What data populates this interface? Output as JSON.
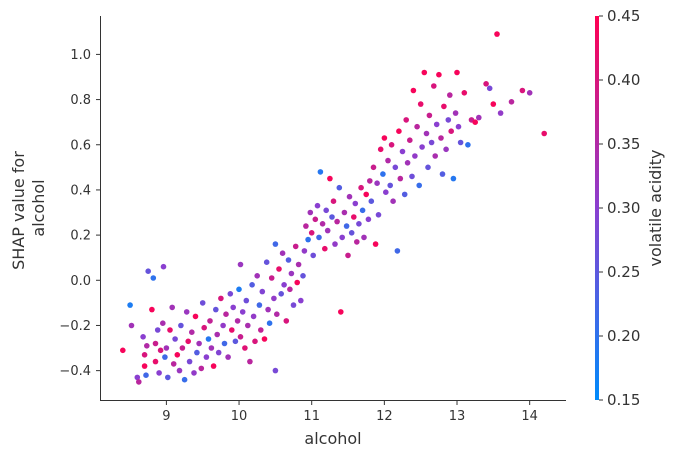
{
  "chart_data": {
    "type": "scatter",
    "title": "",
    "xlabel": "alcohol",
    "ylabel_lines": [
      "SHAP value for",
      "alcohol"
    ],
    "xlim": [
      8.1,
      14.5
    ],
    "ylim": [
      -0.53,
      1.17
    ],
    "xticks": [
      9,
      10,
      11,
      12,
      13,
      14
    ],
    "yticks": [
      -0.4,
      -0.2,
      0.0,
      0.2,
      0.4,
      0.6,
      0.8,
      1.0
    ],
    "xtick_labels": [
      "9",
      "10",
      "11",
      "12",
      "13",
      "14"
    ],
    "ytick_labels": [
      "−0.4",
      "−0.2",
      "0.0",
      "0.2",
      "0.4",
      "0.6",
      "0.8",
      "1.0"
    ],
    "colorbar": {
      "label": "volatile acidity",
      "min": 0.15,
      "max": 0.45,
      "ticks": [
        0.15,
        0.2,
        0.25,
        0.3,
        0.35,
        0.4,
        0.45
      ],
      "tick_labels": [
        "0.15",
        "0.20",
        "0.25",
        "0.30",
        "0.35",
        "0.40",
        "0.45"
      ],
      "color_low": "#008bfb",
      "color_high": "#ff0052"
    },
    "points": [
      [
        8.4,
        -0.31,
        0.44
      ],
      [
        8.5,
        -0.11,
        0.18
      ],
      [
        8.52,
        -0.2,
        0.33
      ],
      [
        8.6,
        -0.43,
        0.3
      ],
      [
        8.62,
        -0.45,
        0.36
      ],
      [
        8.68,
        -0.25,
        0.3
      ],
      [
        8.7,
        -0.33,
        0.4
      ],
      [
        8.7,
        -0.38,
        0.44
      ],
      [
        8.72,
        -0.42,
        0.22
      ],
      [
        8.73,
        -0.29,
        0.35
      ],
      [
        8.75,
        0.04,
        0.26
      ],
      [
        8.8,
        -0.13,
        0.44
      ],
      [
        8.82,
        0.01,
        0.2
      ],
      [
        8.85,
        -0.28,
        0.38
      ],
      [
        8.85,
        -0.36,
        0.42
      ],
      [
        8.88,
        -0.22,
        0.28
      ],
      [
        8.9,
        -0.41,
        0.3
      ],
      [
        8.92,
        -0.31,
        0.4
      ],
      [
        8.95,
        -0.19,
        0.34
      ],
      [
        8.96,
        0.06,
        0.3
      ],
      [
        8.98,
        -0.34,
        0.22
      ],
      [
        9.0,
        -0.3,
        0.33
      ],
      [
        9.02,
        -0.43,
        0.25
      ],
      [
        9.05,
        -0.22,
        0.42
      ],
      [
        9.08,
        -0.12,
        0.33
      ],
      [
        9.1,
        -0.37,
        0.36
      ],
      [
        9.12,
        -0.26,
        0.28
      ],
      [
        9.15,
        -0.33,
        0.44
      ],
      [
        9.18,
        -0.4,
        0.32
      ],
      [
        9.2,
        -0.2,
        0.26
      ],
      [
        9.22,
        -0.3,
        0.38
      ],
      [
        9.25,
        -0.44,
        0.21
      ],
      [
        9.28,
        -0.14,
        0.32
      ],
      [
        9.3,
        -0.27,
        0.42
      ],
      [
        9.32,
        -0.36,
        0.28
      ],
      [
        9.35,
        -0.23,
        0.35
      ],
      [
        9.38,
        -0.41,
        0.31
      ],
      [
        9.4,
        -0.16,
        0.44
      ],
      [
        9.42,
        -0.32,
        0.24
      ],
      [
        9.45,
        -0.28,
        0.33
      ],
      [
        9.48,
        -0.39,
        0.36
      ],
      [
        9.5,
        -0.1,
        0.27
      ],
      [
        9.52,
        -0.21,
        0.4
      ],
      [
        9.55,
        -0.34,
        0.3
      ],
      [
        9.58,
        -0.26,
        0.19
      ],
      [
        9.6,
        -0.18,
        0.37
      ],
      [
        9.62,
        -0.3,
        0.33
      ],
      [
        9.65,
        -0.38,
        0.44
      ],
      [
        9.68,
        -0.13,
        0.26
      ],
      [
        9.7,
        -0.24,
        0.34
      ],
      [
        9.72,
        -0.32,
        0.29
      ],
      [
        9.75,
        -0.08,
        0.4
      ],
      [
        9.78,
        -0.2,
        0.31
      ],
      [
        9.8,
        -0.28,
        0.22
      ],
      [
        9.82,
        -0.15,
        0.36
      ],
      [
        9.85,
        -0.34,
        0.33
      ],
      [
        9.88,
        -0.06,
        0.28
      ],
      [
        9.9,
        -0.22,
        0.42
      ],
      [
        9.92,
        -0.12,
        0.3
      ],
      [
        9.95,
        -0.27,
        0.25
      ],
      [
        9.98,
        -0.18,
        0.35
      ],
      [
        10.0,
        -0.04,
        0.18
      ],
      [
        10.02,
        -0.25,
        0.38
      ],
      [
        10.02,
        0.07,
        0.32
      ],
      [
        10.05,
        -0.14,
        0.3
      ],
      [
        10.08,
        -0.3,
        0.41
      ],
      [
        10.1,
        -0.09,
        0.27
      ],
      [
        10.12,
        -0.2,
        0.34
      ],
      [
        10.15,
        -0.36,
        0.36
      ],
      [
        10.18,
        -0.02,
        0.24
      ],
      [
        10.2,
        -0.16,
        0.31
      ],
      [
        10.22,
        -0.27,
        0.4
      ],
      [
        10.25,
        0.02,
        0.33
      ],
      [
        10.28,
        -0.11,
        0.22
      ],
      [
        10.3,
        -0.22,
        0.37
      ],
      [
        10.32,
        -0.05,
        0.29
      ],
      [
        10.35,
        -0.26,
        0.44
      ],
      [
        10.38,
        0.08,
        0.26
      ],
      [
        10.4,
        -0.13,
        0.33
      ],
      [
        10.42,
        -0.19,
        0.2
      ],
      [
        10.45,
        0.01,
        0.38
      ],
      [
        10.48,
        -0.08,
        0.31
      ],
      [
        10.5,
        0.16,
        0.22
      ],
      [
        10.5,
        -0.4,
        0.28
      ],
      [
        10.52,
        -0.15,
        0.35
      ],
      [
        10.55,
        0.05,
        0.42
      ],
      [
        10.58,
        -0.06,
        0.26
      ],
      [
        10.6,
        0.12,
        0.33
      ],
      [
        10.62,
        -0.02,
        0.3
      ],
      [
        10.65,
        -0.18,
        0.4
      ],
      [
        10.68,
        0.09,
        0.24
      ],
      [
        10.7,
        -0.04,
        0.36
      ],
      [
        10.72,
        0.03,
        0.32
      ],
      [
        10.75,
        -0.11,
        0.28
      ],
      [
        10.78,
        0.15,
        0.38
      ],
      [
        10.8,
        -0.01,
        0.44
      ],
      [
        10.82,
        0.07,
        0.34
      ],
      [
        10.85,
        -0.09,
        0.3
      ],
      [
        10.88,
        0.02,
        0.26
      ],
      [
        10.9,
        0.13,
        0.31
      ],
      [
        10.92,
        0.24,
        0.36
      ],
      [
        10.95,
        0.18,
        0.2
      ],
      [
        10.98,
        0.3,
        0.33
      ],
      [
        11.0,
        0.21,
        0.4
      ],
      [
        11.02,
        0.11,
        0.27
      ],
      [
        11.05,
        0.27,
        0.38
      ],
      [
        11.08,
        0.33,
        0.3
      ],
      [
        11.1,
        0.19,
        0.22
      ],
      [
        11.12,
        0.48,
        0.19
      ],
      [
        11.15,
        0.25,
        0.35
      ],
      [
        11.18,
        0.14,
        0.42
      ],
      [
        11.2,
        0.31,
        0.28
      ],
      [
        11.22,
        0.22,
        0.33
      ],
      [
        11.25,
        0.45,
        0.44
      ],
      [
        11.28,
        0.28,
        0.25
      ],
      [
        11.3,
        0.35,
        0.4
      ],
      [
        11.32,
        0.16,
        0.31
      ],
      [
        11.35,
        0.26,
        0.36
      ],
      [
        11.38,
        0.41,
        0.24
      ],
      [
        11.4,
        -0.14,
        0.44
      ],
      [
        11.42,
        0.19,
        0.3
      ],
      [
        11.45,
        0.3,
        0.34
      ],
      [
        11.48,
        0.24,
        0.22
      ],
      [
        11.5,
        0.11,
        0.38
      ],
      [
        11.52,
        0.37,
        0.33
      ],
      [
        11.55,
        0.21,
        0.26
      ],
      [
        11.58,
        0.28,
        0.42
      ],
      [
        11.6,
        0.34,
        0.3
      ],
      [
        11.62,
        0.17,
        0.36
      ],
      [
        11.65,
        0.25,
        0.28
      ],
      [
        11.68,
        0.41,
        0.4
      ],
      [
        11.7,
        0.31,
        0.21
      ],
      [
        11.72,
        0.19,
        0.33
      ],
      [
        11.75,
        0.38,
        0.44
      ],
      [
        11.78,
        0.27,
        0.3
      ],
      [
        11.8,
        0.44,
        0.36
      ],
      [
        11.82,
        0.35,
        0.25
      ],
      [
        11.85,
        0.5,
        0.38
      ],
      [
        11.88,
        0.16,
        0.44
      ],
      [
        11.9,
        0.43,
        0.32
      ],
      [
        11.92,
        0.29,
        0.28
      ],
      [
        11.95,
        0.58,
        0.42
      ],
      [
        11.98,
        0.47,
        0.2
      ],
      [
        12.0,
        0.63,
        0.44
      ],
      [
        12.02,
        0.39,
        0.3
      ],
      [
        12.05,
        0.53,
        0.35
      ],
      [
        12.08,
        0.42,
        0.26
      ],
      [
        12.1,
        0.6,
        0.4
      ],
      [
        12.12,
        0.35,
        0.33
      ],
      [
        12.15,
        0.5,
        0.28
      ],
      [
        12.18,
        0.13,
        0.22
      ],
      [
        12.2,
        0.66,
        0.44
      ],
      [
        12.22,
        0.45,
        0.36
      ],
      [
        12.25,
        0.57,
        0.3
      ],
      [
        12.28,
        0.38,
        0.24
      ],
      [
        12.3,
        0.71,
        0.4
      ],
      [
        12.32,
        0.52,
        0.33
      ],
      [
        12.35,
        0.62,
        0.38
      ],
      [
        12.38,
        0.46,
        0.27
      ],
      [
        12.4,
        0.84,
        0.44
      ],
      [
        12.42,
        0.55,
        0.31
      ],
      [
        12.45,
        0.68,
        0.36
      ],
      [
        12.48,
        0.42,
        0.21
      ],
      [
        12.5,
        0.78,
        0.42
      ],
      [
        12.52,
        0.59,
        0.3
      ],
      [
        12.55,
        0.92,
        0.44
      ],
      [
        12.58,
        0.65,
        0.33
      ],
      [
        12.6,
        0.5,
        0.26
      ],
      [
        12.62,
        0.73,
        0.38
      ],
      [
        12.65,
        0.61,
        0.28
      ],
      [
        12.68,
        0.86,
        0.4
      ],
      [
        12.7,
        0.55,
        0.34
      ],
      [
        12.72,
        0.69,
        0.3
      ],
      [
        12.75,
        0.91,
        0.44
      ],
      [
        12.78,
        0.63,
        0.36
      ],
      [
        12.8,
        0.47,
        0.24
      ],
      [
        12.82,
        0.77,
        0.42
      ],
      [
        12.85,
        0.58,
        0.32
      ],
      [
        12.88,
        0.71,
        0.28
      ],
      [
        12.9,
        0.82,
        0.36
      ],
      [
        12.92,
        0.66,
        0.4
      ],
      [
        12.95,
        0.45,
        0.19
      ],
      [
        12.98,
        0.74,
        0.33
      ],
      [
        13.0,
        0.92,
        0.44
      ],
      [
        13.02,
        0.68,
        0.3
      ],
      [
        13.05,
        0.61,
        0.26
      ],
      [
        13.1,
        0.83,
        0.42
      ],
      [
        13.15,
        0.6,
        0.2
      ],
      [
        13.2,
        0.71,
        0.38
      ],
      [
        13.25,
        0.7,
        0.44
      ],
      [
        13.3,
        0.72,
        0.33
      ],
      [
        13.4,
        0.87,
        0.4
      ],
      [
        13.45,
        0.85,
        0.28
      ],
      [
        13.5,
        0.78,
        0.44
      ],
      [
        13.55,
        1.09,
        0.44
      ],
      [
        13.6,
        0.74,
        0.31
      ],
      [
        13.75,
        0.79,
        0.36
      ],
      [
        13.9,
        0.84,
        0.4
      ],
      [
        14.0,
        0.83,
        0.33
      ],
      [
        14.2,
        0.65,
        0.42
      ]
    ]
  }
}
